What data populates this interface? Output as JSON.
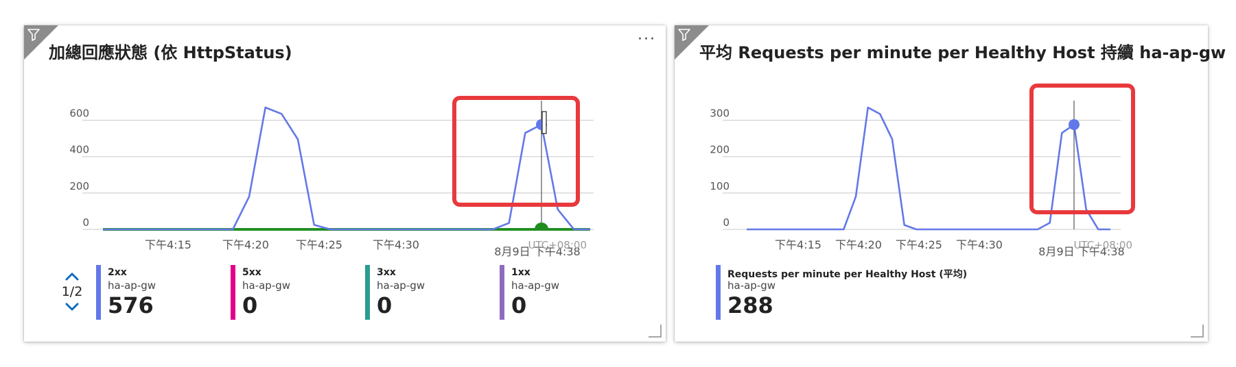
{
  "tiles": [
    {
      "title": "加總回應狀態 (依 HttpStatus)",
      "more_label": "···",
      "chart_data": {
        "type": "line",
        "title": "加總回應狀態 (依 HttpStatus)",
        "x_ticks": [
          "下午4:15",
          "下午4:20",
          "下午4:25",
          "下午4:30"
        ],
        "hover_label": "8月9日 下午4:38",
        "timezone": "UTC+08:00",
        "yticks": [
          0,
          200,
          400,
          600
        ],
        "ylim": [
          0,
          700
        ],
        "x": [
          0,
          1,
          2,
          3,
          4,
          5,
          6,
          7,
          8,
          9,
          10,
          11,
          12,
          13,
          14,
          15,
          16,
          17,
          18,
          19,
          20,
          21,
          22,
          23,
          24,
          25,
          26,
          27,
          28,
          29,
          30
        ],
        "series": [
          {
            "name": "2xx",
            "color": "#6378e8",
            "values": [
              0,
              0,
              0,
              0,
              0,
              0,
              0,
              0,
              0,
              180,
              670,
              635,
              495,
              25,
              0,
              0,
              0,
              0,
              0,
              0,
              0,
              0,
              0,
              0,
              0,
              35,
              530,
              576,
              110,
              0,
              0
            ]
          },
          {
            "name": "5xx",
            "color": "#e3008c",
            "values": [
              0,
              0,
              0,
              0,
              0,
              0,
              0,
              0,
              0,
              0,
              0,
              0,
              0,
              0,
              0,
              0,
              0,
              0,
              0,
              0,
              0,
              0,
              0,
              0,
              0,
              0,
              0,
              0,
              0,
              0,
              0
            ]
          },
          {
            "name": "3xx",
            "color": "#2a9d8f",
            "values": [
              0,
              0,
              0,
              0,
              0,
              0,
              0,
              0,
              0,
              0,
              0,
              0,
              0,
              0,
              0,
              0,
              0,
              0,
              0,
              0,
              0,
              0,
              0,
              0,
              0,
              0,
              0,
              0,
              0,
              0,
              0
            ]
          },
          {
            "name": "1xx",
            "color": "#8e6bbf",
            "values": [
              0,
              0,
              0,
              0,
              0,
              0,
              0,
              0,
              0,
              0,
              0,
              0,
              0,
              0,
              0,
              0,
              0,
              0,
              0,
              0,
              0,
              0,
              0,
              0,
              0,
              0,
              0,
              0,
              0,
              0,
              0
            ]
          }
        ],
        "hover_index": 27,
        "highlight_color": "#e8393d"
      },
      "legend": {
        "pager": "1/2",
        "items": [
          {
            "name": "2xx",
            "resource": "ha-ap-gw",
            "value": "576",
            "color": "#6378e8"
          },
          {
            "name": "5xx",
            "resource": "ha-ap-gw",
            "value": "0",
            "color": "#e3008c"
          },
          {
            "name": "3xx",
            "resource": "ha-ap-gw",
            "value": "0",
            "color": "#2a9d8f"
          },
          {
            "name": "1xx",
            "resource": "ha-ap-gw",
            "value": "0",
            "color": "#8e6bbf"
          }
        ]
      }
    },
    {
      "title": "平均 Requests per minute per Healthy Host 持續 ha-ap-gw",
      "chart_data": {
        "type": "line",
        "title": "平均 Requests per minute per Healthy Host 持續 ha-ap-gw",
        "x_ticks": [
          "下午4:15",
          "下午4:20",
          "下午4:25",
          "下午4:30"
        ],
        "hover_label": "8月9日 下午4:38",
        "timezone": "UTC+08:00",
        "yticks": [
          0,
          100,
          200,
          300
        ],
        "ylim": [
          0,
          350
        ],
        "x": [
          0,
          1,
          2,
          3,
          4,
          5,
          6,
          7,
          8,
          9,
          10,
          11,
          12,
          13,
          14,
          15,
          16,
          17,
          18,
          19,
          20,
          21,
          22,
          23,
          24,
          25,
          26,
          27,
          28,
          29,
          30
        ],
        "series": [
          {
            "name": "Requests per minute per Healthy Host (平均)",
            "color": "#6378e8",
            "values": [
              0,
              0,
              0,
              0,
              0,
              0,
              0,
              0,
              0,
              90,
              335,
              317,
              248,
              12,
              0,
              0,
              0,
              0,
              0,
              0,
              0,
              0,
              0,
              0,
              0,
              18,
              265,
              288,
              55,
              0,
              0
            ]
          }
        ],
        "hover_index": 27,
        "highlight_color": "#e8393d"
      },
      "legend": {
        "items": [
          {
            "name": "Requests per minute per Healthy Host (平均)",
            "resource": "ha-ap-gw",
            "value": "288",
            "color": "#6378e8"
          }
        ]
      }
    }
  ]
}
